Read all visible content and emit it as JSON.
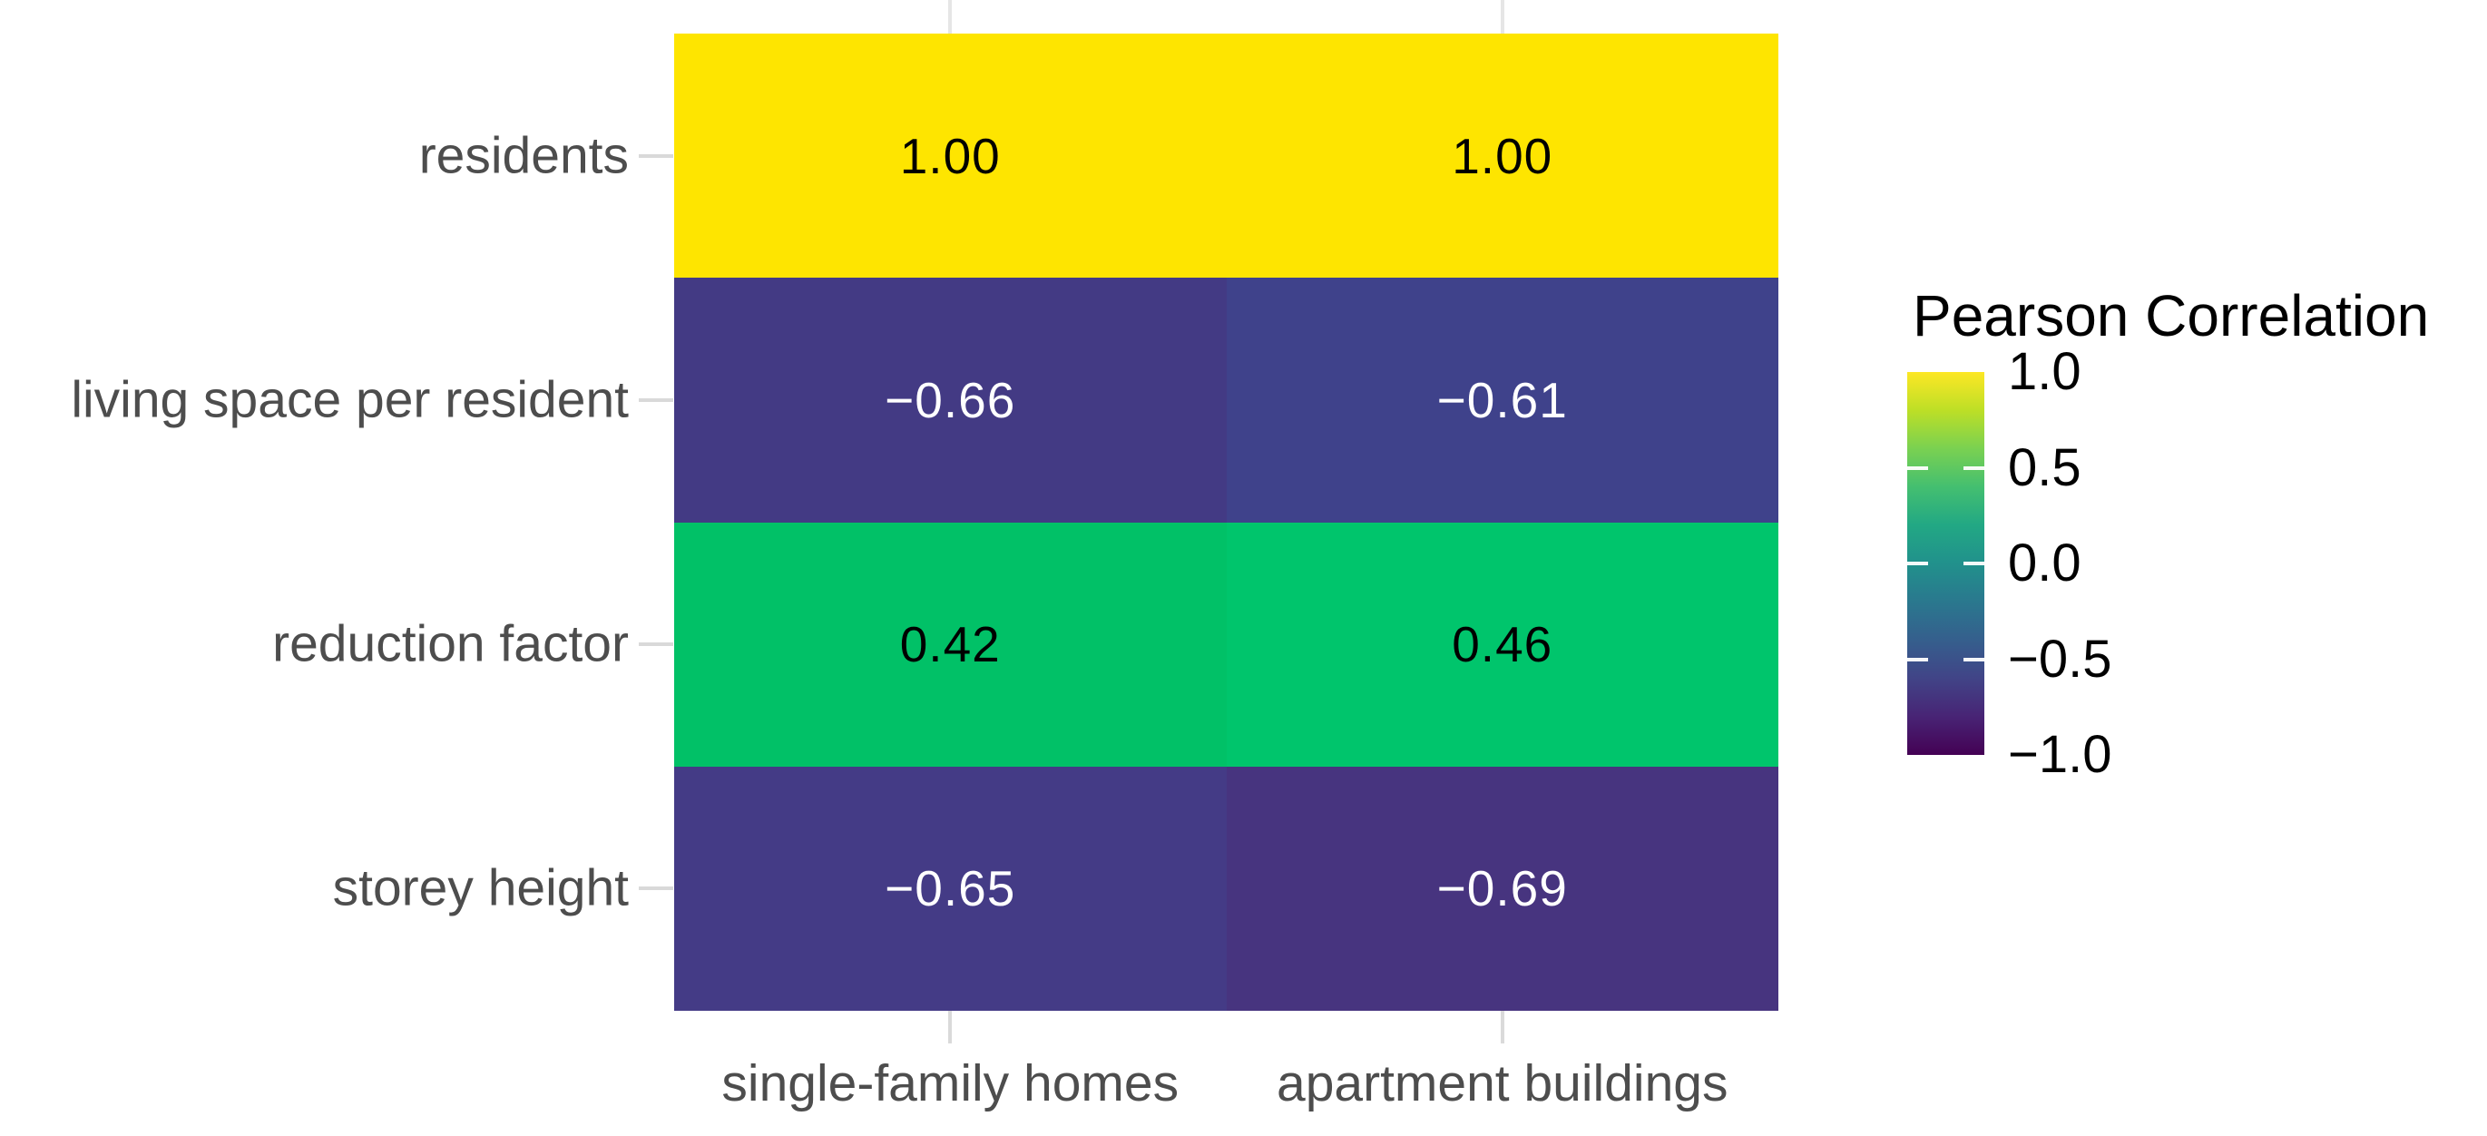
{
  "chart_data": {
    "type": "heatmap",
    "rows": [
      "residents",
      "living space per resident",
      "reduction factor",
      "storey height"
    ],
    "columns": [
      "single-family homes",
      "apartment buildings"
    ],
    "values": [
      [
        1.0,
        1.0
      ],
      [
        -0.66,
        -0.61
      ],
      [
        0.42,
        0.46
      ],
      [
        -0.65,
        -0.69
      ]
    ],
    "value_labels": [
      [
        "1.00",
        "1.00"
      ],
      [
        "−0.66",
        "−0.61"
      ],
      [
        "0.42",
        "0.46"
      ],
      [
        "−0.65",
        "−0.69"
      ]
    ],
    "cell_colors": [
      [
        "#FEE500",
        "#FEE500"
      ],
      [
        "#433A84",
        "#3F428B"
      ],
      [
        "#01C167",
        "#00C56C"
      ],
      [
        "#443B86",
        "#47347F"
      ]
    ],
    "cell_text_colors": [
      [
        "#000000",
        "#000000"
      ],
      [
        "#FFFFFF",
        "#FFFFFF"
      ],
      [
        "#000000",
        "#000000"
      ],
      [
        "#FFFFFF",
        "#FFFFFF"
      ]
    ],
    "grid": false,
    "axis": {
      "text_color": "#4D4D4D",
      "tick_color": "#D9D9D9"
    },
    "legend": {
      "title": "Pearson Correlation",
      "position": "right",
      "range": [
        -1.0,
        1.0
      ],
      "tick_labels": [
        "1.0",
        "0.5",
        "0.0",
        "−0.5",
        "−1.0"
      ],
      "tick_values": [
        1.0,
        0.5,
        0.0,
        -0.5,
        -1.0
      ],
      "inner_tick_values": [
        0.5,
        0.0,
        -0.5
      ],
      "colormap": "viridis",
      "gradient_stops": [
        {
          "pos": 0,
          "color": "#FDE725"
        },
        {
          "pos": 10,
          "color": "#BDDF26"
        },
        {
          "pos": 20,
          "color": "#7AD151"
        },
        {
          "pos": 30,
          "color": "#44BF70"
        },
        {
          "pos": 40,
          "color": "#22A884"
        },
        {
          "pos": 50,
          "color": "#21918C"
        },
        {
          "pos": 60,
          "color": "#2A788E"
        },
        {
          "pos": 70,
          "color": "#355F8D"
        },
        {
          "pos": 80,
          "color": "#414487"
        },
        {
          "pos": 90,
          "color": "#482475"
        },
        {
          "pos": 100,
          "color": "#440154"
        }
      ]
    }
  }
}
